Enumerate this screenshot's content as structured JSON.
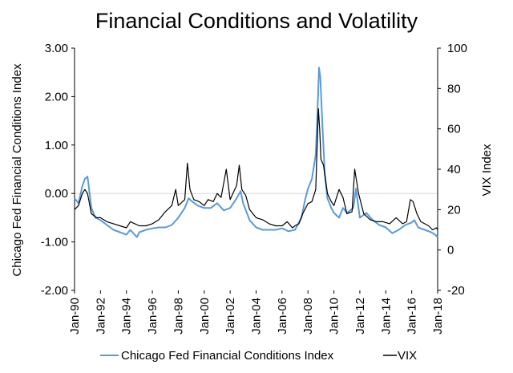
{
  "chart_data": {
    "type": "line",
    "title": "Financial Conditions and Volatility",
    "y_left": {
      "label": "Chicago Fed Financial Conditions Index",
      "ylim": [
        -2,
        3
      ],
      "ticks": [
        3,
        2,
        1,
        0,
        -1,
        -2
      ],
      "tick_labels": [
        "3.00",
        "2.00",
        "1.00",
        "0.00",
        "-1.00",
        "-2.00"
      ]
    },
    "y_right": {
      "label": "VIX Index",
      "ylim": [
        -20,
        100
      ],
      "ticks": [
        100,
        80,
        60,
        40,
        20,
        0,
        -20
      ],
      "tick_labels": [
        "100",
        "80",
        "60",
        "40",
        "20",
        "0",
        "-20"
      ]
    },
    "x_axis": {
      "range": [
        1990.0,
        2018.0
      ],
      "tick_labels": [
        "Jan-90",
        "Jan-92",
        "Jan-94",
        "Jan-96",
        "Jan-98",
        "Jan-00",
        "Jan-02",
        "Jan-04",
        "Jan-06",
        "Jan-08",
        "Jan-10",
        "Jan-12",
        "Jan-14",
        "Jan-16",
        "Jan-18"
      ],
      "tick_years": [
        1990,
        1992,
        1994,
        1996,
        1998,
        2000,
        2002,
        2004,
        2006,
        2008,
        2010,
        2012,
        2014,
        2016,
        2018
      ]
    },
    "zero_line": true,
    "legend_position": "bottom",
    "series": [
      {
        "name": "Chicago Fed Financial Conditions Index",
        "axis": "left",
        "color": "#5B9BD5",
        "x": [
          1990.0,
          1990.3,
          1990.6,
          1990.8,
          1991.0,
          1991.3,
          1991.6,
          1992.0,
          1992.5,
          1993.0,
          1993.5,
          1994.0,
          1994.3,
          1994.8,
          1995.0,
          1995.5,
          1996.0,
          1996.5,
          1997.0,
          1997.5,
          1998.0,
          1998.5,
          1998.8,
          1999.0,
          1999.5,
          2000.0,
          2000.5,
          2001.0,
          2001.5,
          2002.0,
          2002.5,
          2002.8,
          2003.0,
          2003.5,
          2004.0,
          2004.5,
          2005.0,
          2005.5,
          2006.0,
          2006.5,
          2007.0,
          2007.5,
          2007.8,
          2008.0,
          2008.3,
          2008.6,
          2008.75,
          2008.85,
          2008.95,
          2009.1,
          2009.3,
          2009.5,
          2009.8,
          2010.0,
          2010.4,
          2010.7,
          2011.0,
          2011.5,
          2011.7,
          2012.0,
          2012.5,
          2013.0,
          2013.5,
          2014.0,
          2014.5,
          2015.0,
          2015.5,
          2016.0,
          2016.2,
          2016.5,
          2017.0,
          2017.5,
          2017.8,
          2018.0
        ],
        "values": [
          -0.1,
          -0.2,
          0.15,
          0.3,
          0.35,
          -0.3,
          -0.5,
          -0.55,
          -0.65,
          -0.75,
          -0.8,
          -0.85,
          -0.75,
          -0.9,
          -0.8,
          -0.75,
          -0.72,
          -0.7,
          -0.7,
          -0.65,
          -0.5,
          -0.3,
          -0.1,
          -0.15,
          -0.25,
          -0.3,
          -0.3,
          -0.2,
          -0.35,
          -0.3,
          -0.1,
          0.05,
          -0.2,
          -0.55,
          -0.7,
          -0.75,
          -0.75,
          -0.75,
          -0.72,
          -0.78,
          -0.75,
          -0.5,
          -0.1,
          0.1,
          0.3,
          0.8,
          1.8,
          2.6,
          2.4,
          1.5,
          0.4,
          -0.1,
          -0.3,
          -0.4,
          -0.5,
          -0.3,
          -0.4,
          -0.3,
          0.1,
          -0.5,
          -0.4,
          -0.55,
          -0.65,
          -0.7,
          -0.82,
          -0.75,
          -0.65,
          -0.6,
          -0.55,
          -0.7,
          -0.75,
          -0.8,
          -0.85,
          -0.9
        ]
      },
      {
        "name": "VIX",
        "axis": "right",
        "color": "#000000",
        "x": [
          1990.0,
          1990.3,
          1990.6,
          1990.8,
          1991.0,
          1991.3,
          1991.7,
          1992.0,
          1992.5,
          1993.0,
          1993.5,
          1994.0,
          1994.3,
          1995.0,
          1995.5,
          1996.0,
          1996.5,
          1997.0,
          1997.5,
          1997.8,
          1998.0,
          1998.5,
          1998.7,
          1998.9,
          1999.2,
          1999.6,
          2000.0,
          2000.3,
          2000.7,
          2001.0,
          2001.3,
          2001.7,
          2002.0,
          2002.5,
          2002.7,
          2002.9,
          2003.2,
          2003.5,
          2004.0,
          2004.5,
          2005.0,
          2005.5,
          2006.0,
          2006.4,
          2006.8,
          2007.0,
          2007.3,
          2007.6,
          2008.0,
          2008.3,
          2008.6,
          2008.8,
          2008.9,
          2009.0,
          2009.2,
          2009.5,
          2009.8,
          2010.0,
          2010.4,
          2010.7,
          2011.0,
          2011.4,
          2011.6,
          2011.9,
          2012.3,
          2012.8,
          2013.3,
          2013.8,
          2014.3,
          2014.8,
          2015.3,
          2015.6,
          2015.9,
          2016.1,
          2016.4,
          2016.7,
          2017.0,
          2017.3,
          2017.6,
          2017.9,
          2018.0
        ],
        "values": [
          20,
          22,
          28,
          30,
          28,
          18,
          16,
          16,
          14,
          13,
          12,
          11,
          14,
          12,
          12,
          13,
          15,
          19,
          22,
          30,
          22,
          25,
          43,
          30,
          25,
          24,
          22,
          25,
          24,
          28,
          26,
          40,
          25,
          32,
          42,
          30,
          27,
          20,
          16,
          15,
          13,
          12,
          12,
          14,
          11,
          12,
          13,
          18,
          23,
          24,
          30,
          70,
          60,
          45,
          42,
          28,
          24,
          22,
          30,
          26,
          18,
          19,
          40,
          28,
          18,
          15,
          14,
          14,
          13,
          16,
          13,
          14,
          25,
          24,
          18,
          14,
          13,
          12,
          10,
          11,
          10
        ]
      }
    ]
  }
}
